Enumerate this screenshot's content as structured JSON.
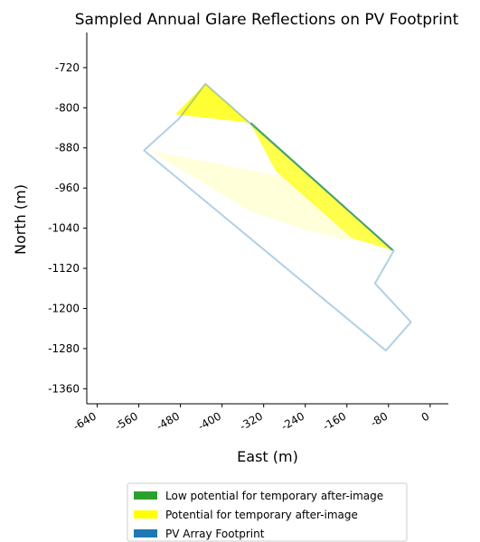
{
  "chart_data": {
    "type": "area",
    "title": "Sampled Annual Glare Reflections on PV Footprint",
    "xlabel": "East (m)",
    "ylabel": "North (m)",
    "xlim": [
      -660,
      35
    ],
    "ylim": [
      -1390,
      -650
    ],
    "xticks": [
      -640,
      -560,
      -480,
      -400,
      -320,
      -240,
      -160,
      -80,
      0
    ],
    "xtick_labels": [
      "-640",
      "-560",
      "-480",
      "-400",
      "-320",
      "-240",
      "-160",
      "-80",
      "0"
    ],
    "yticks": [
      -720,
      -800,
      -880,
      -960,
      -1040,
      -1120,
      -1200,
      -1280,
      -1360
    ],
    "ytick_labels": [
      "-720",
      "-800",
      "-880",
      "-960",
      "-1040",
      "-1120",
      "-1200",
      "-1280",
      "-1360"
    ],
    "grid": false,
    "legend_position": "bottom-center",
    "series": [
      {
        "name": "PV Array Footprint",
        "kind": "outline",
        "color": "#1f77b4",
        "alpha": 0.35,
        "points": [
          [
            -432,
            -752
          ],
          [
            -70,
            -1085
          ],
          [
            -106,
            -1150
          ],
          [
            -37,
            -1227
          ],
          [
            -85,
            -1284
          ],
          [
            -550,
            -885
          ],
          [
            -482,
            -821
          ]
        ]
      },
      {
        "name": "Potential for temporary after-image",
        "kind": "fill",
        "color": "#ffff00",
        "regions": [
          {
            "alpha": 0.8,
            "points": [
              [
                -432,
                -752
              ],
              [
                -346,
                -830
              ],
              [
                -490,
                -813
              ]
            ]
          },
          {
            "alpha": 0.7,
            "points": [
              [
                -346,
                -830
              ],
              [
                -72,
                -1084
              ],
              [
                -150,
                -1060
              ],
              [
                -297,
                -926
              ]
            ]
          },
          {
            "alpha": 0.15,
            "points": [
              [
                -540,
                -885
              ],
              [
                -270,
                -940
              ],
              [
                -150,
                -1058
              ],
              [
                -158,
                -1065
              ],
              [
                -250,
                -1040
              ],
              [
                -348,
                -1005
              ]
            ]
          }
        ]
      },
      {
        "name": "Low potential for temporary after-image",
        "kind": "edge",
        "color": "#2ca02c",
        "alpha": 0.8,
        "points": [
          [
            -345,
            -830
          ],
          [
            -72,
            -1084
          ]
        ]
      }
    ],
    "legend": [
      {
        "label": "Low potential for temporary after-image",
        "color": "#2ca02c"
      },
      {
        "label": "Potential for temporary after-image",
        "color": "#ffff00"
      },
      {
        "label": "PV Array Footprint",
        "color": "#1f77b4"
      }
    ]
  }
}
